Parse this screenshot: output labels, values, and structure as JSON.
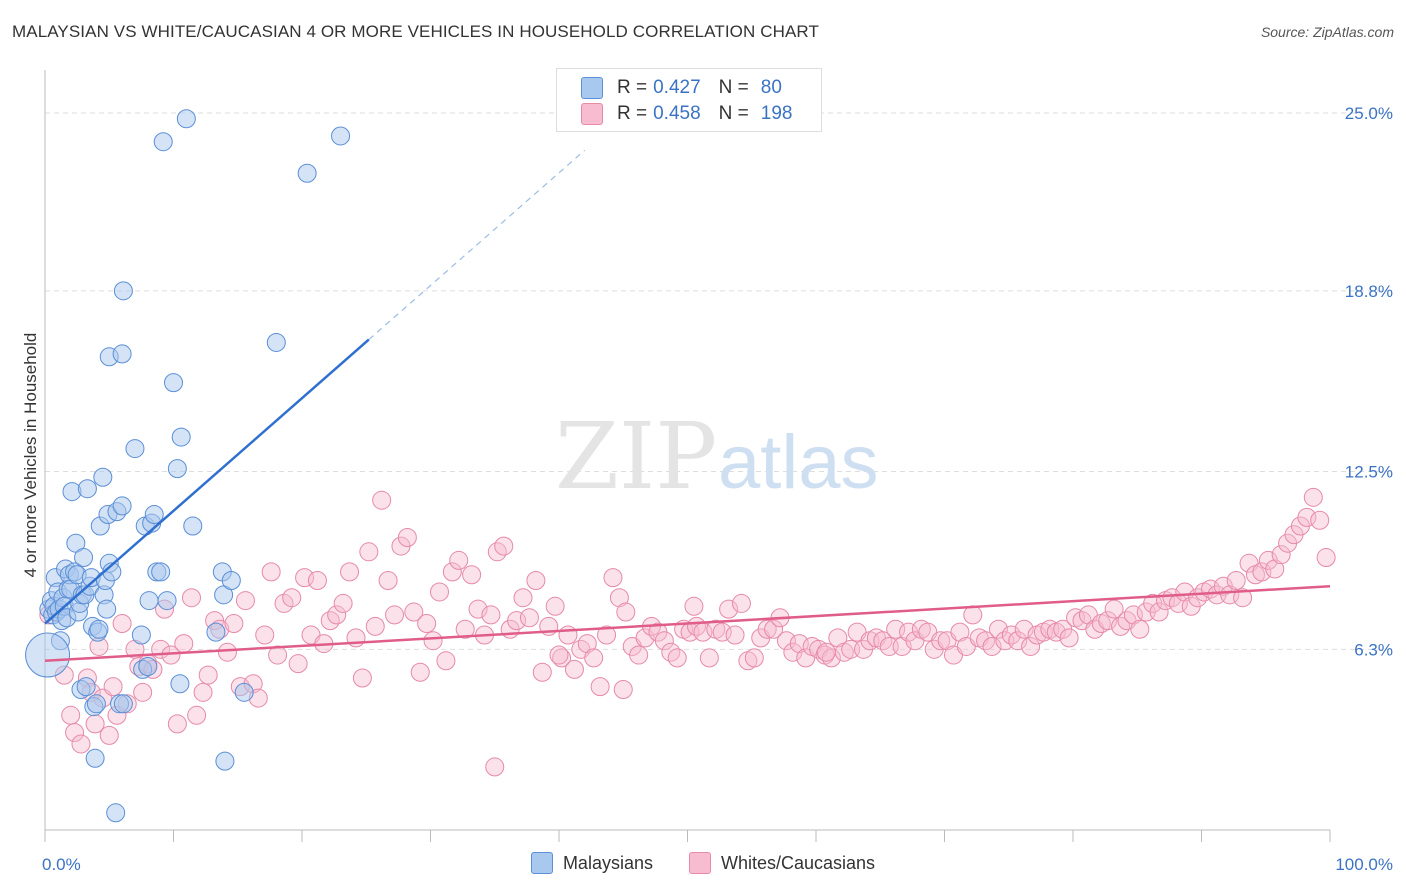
{
  "title": "MALAYSIAN VS WHITE/CAUCASIAN 4 OR MORE VEHICLES IN HOUSEHOLD CORRELATION CHART",
  "source": "Source: ZipAtlas.com",
  "watermark": {
    "zip": "ZIP",
    "atlas": "atlas"
  },
  "legend": {
    "rows": [
      {
        "r_label": "R =",
        "r_value": "0.427",
        "n_label": "N =",
        "n_value": "80"
      },
      {
        "r_label": "R =",
        "r_value": "0.458",
        "n_label": "N =",
        "n_value": "198"
      }
    ]
  },
  "bottom_legend": {
    "series1": "Malaysians",
    "series2": "Whites/Caucasians"
  },
  "colors": {
    "blue_fill": "#a9c8ee",
    "blue_stroke": "#5b8fd6",
    "blue_line": "#2f6fd0",
    "pink_fill": "#f7bcd0",
    "pink_stroke": "#e68aa8",
    "pink_line": "#e05c8a",
    "axis_text": "#3b73c4",
    "grid": "#dddddd"
  },
  "chart_data": {
    "type": "scatter",
    "title": "MALAYSIAN VS WHITE/CAUCASIAN 4 OR MORE VEHICLES IN HOUSEHOLD CORRELATION CHART",
    "xlabel": "",
    "ylabel": "4 or more Vehicles in Household",
    "xlim": [
      0,
      100
    ],
    "ylim": [
      0,
      26.5
    ],
    "x_tick_labels": [
      "0.0%",
      "100.0%"
    ],
    "y_ticks": [
      6.3,
      12.5,
      18.8,
      25.0
    ],
    "y_tick_labels": [
      "6.3%",
      "12.5%",
      "18.8%",
      "25.0%"
    ],
    "grid": true,
    "legend_position": "top-center",
    "series": [
      {
        "name": "Malaysians",
        "R": 0.427,
        "N": 80,
        "trend": {
          "x": [
            0,
            25.2
          ],
          "y": [
            7.2,
            17.1
          ],
          "dashed_to": [
            42,
            23.7
          ]
        },
        "points": [
          [
            0.3,
            7.7
          ],
          [
            0.5,
            8.0
          ],
          [
            0.6,
            7.5
          ],
          [
            0.7,
            7.8
          ],
          [
            0.8,
            8.8
          ],
          [
            0.9,
            7.6
          ],
          [
            1.0,
            8.3
          ],
          [
            1.1,
            7.7
          ],
          [
            1.2,
            6.6
          ],
          [
            1.3,
            7.3
          ],
          [
            1.4,
            8.1
          ],
          [
            1.5,
            7.8
          ],
          [
            1.6,
            9.1
          ],
          [
            1.7,
            7.4
          ],
          [
            1.8,
            8.4
          ],
          [
            1.9,
            8.9
          ],
          [
            2.0,
            8.4
          ],
          [
            2.1,
            11.8
          ],
          [
            2.3,
            9.0
          ],
          [
            2.4,
            10.0
          ],
          [
            2.5,
            8.9
          ],
          [
            2.6,
            7.6
          ],
          [
            2.7,
            7.9
          ],
          [
            2.8,
            4.9
          ],
          [
            2.9,
            8.2
          ],
          [
            3.0,
            9.5
          ],
          [
            3.1,
            8.2
          ],
          [
            3.2,
            5.0
          ],
          [
            3.3,
            11.9
          ],
          [
            3.5,
            8.5
          ],
          [
            3.6,
            8.8
          ],
          [
            3.7,
            7.1
          ],
          [
            3.8,
            4.3
          ],
          [
            3.9,
            2.5
          ],
          [
            4.0,
            4.4
          ],
          [
            4.1,
            6.9
          ],
          [
            4.2,
            7.0
          ],
          [
            4.3,
            10.6
          ],
          [
            4.5,
            12.3
          ],
          [
            4.6,
            8.2
          ],
          [
            4.7,
            8.7
          ],
          [
            4.8,
            7.7
          ],
          [
            4.9,
            11.0
          ],
          [
            5.0,
            9.3
          ],
          [
            5.2,
            9.0
          ],
          [
            5.5,
            0.6
          ],
          [
            5.6,
            11.1
          ],
          [
            5.8,
            4.4
          ],
          [
            6.0,
            11.3
          ],
          [
            6.1,
            4.4
          ],
          [
            7.0,
            13.3
          ],
          [
            7.5,
            6.8
          ],
          [
            7.6,
            5.6
          ],
          [
            7.8,
            10.6
          ],
          [
            8.0,
            5.7
          ],
          [
            8.1,
            8.0
          ],
          [
            8.3,
            10.7
          ],
          [
            8.5,
            11.0
          ],
          [
            8.7,
            9.0
          ],
          [
            9.0,
            9.0
          ],
          [
            9.2,
            24.0
          ],
          [
            9.5,
            8.0
          ],
          [
            10.0,
            15.6
          ],
          [
            10.3,
            12.6
          ],
          [
            10.5,
            5.1
          ],
          [
            10.6,
            13.7
          ],
          [
            11.0,
            24.8
          ],
          [
            11.5,
            10.6
          ],
          [
            13.3,
            6.9
          ],
          [
            13.8,
            9.0
          ],
          [
            13.9,
            8.2
          ],
          [
            14.0,
            2.4
          ],
          [
            14.5,
            8.7
          ],
          [
            15.5,
            4.8
          ],
          [
            18.0,
            17.0
          ],
          [
            20.4,
            22.9
          ],
          [
            23.0,
            24.2
          ],
          [
            6.1,
            18.8
          ],
          [
            5.0,
            16.5
          ],
          [
            6.0,
            16.6
          ],
          [
            0.2,
            6.1
          ]
        ]
      },
      {
        "name": "Whites/Caucasians",
        "R": 0.458,
        "N": 198,
        "trend": {
          "x": [
            0,
            100
          ],
          "y": [
            5.9,
            8.5
          ]
        },
        "points": [
          [
            0.3,
            7.5
          ],
          [
            1.5,
            5.4
          ],
          [
            2.0,
            4.0
          ],
          [
            2.3,
            3.4
          ],
          [
            2.8,
            3.0
          ],
          [
            3.3,
            5.3
          ],
          [
            3.6,
            4.8
          ],
          [
            3.9,
            3.7
          ],
          [
            4.2,
            6.4
          ],
          [
            4.5,
            4.6
          ],
          [
            5.0,
            3.3
          ],
          [
            5.3,
            5.0
          ],
          [
            5.6,
            4.0
          ],
          [
            6.0,
            7.2
          ],
          [
            6.4,
            4.4
          ],
          [
            7.0,
            6.3
          ],
          [
            7.3,
            5.7
          ],
          [
            7.6,
            4.8
          ],
          [
            8.0,
            5.8
          ],
          [
            8.4,
            5.6
          ],
          [
            9.0,
            6.3
          ],
          [
            9.3,
            7.7
          ],
          [
            9.8,
            6.1
          ],
          [
            10.3,
            3.7
          ],
          [
            10.8,
            6.5
          ],
          [
            11.4,
            8.1
          ],
          [
            11.8,
            4.0
          ],
          [
            12.3,
            4.8
          ],
          [
            12.7,
            5.4
          ],
          [
            13.2,
            7.3
          ],
          [
            13.6,
            7.0
          ],
          [
            14.2,
            6.2
          ],
          [
            14.7,
            7.2
          ],
          [
            15.2,
            5.0
          ],
          [
            15.6,
            8.0
          ],
          [
            16.2,
            5.1
          ],
          [
            16.6,
            4.6
          ],
          [
            17.1,
            6.8
          ],
          [
            17.6,
            9.0
          ],
          [
            18.1,
            6.1
          ],
          [
            18.6,
            7.9
          ],
          [
            19.2,
            8.1
          ],
          [
            19.7,
            5.8
          ],
          [
            20.2,
            8.8
          ],
          [
            20.7,
            6.8
          ],
          [
            21.2,
            8.7
          ],
          [
            21.7,
            6.5
          ],
          [
            22.2,
            7.3
          ],
          [
            22.7,
            7.5
          ],
          [
            23.2,
            7.9
          ],
          [
            23.7,
            9.0
          ],
          [
            24.2,
            6.7
          ],
          [
            24.7,
            5.3
          ],
          [
            25.2,
            9.7
          ],
          [
            25.7,
            7.1
          ],
          [
            26.2,
            11.5
          ],
          [
            26.7,
            8.7
          ],
          [
            27.2,
            7.5
          ],
          [
            27.7,
            9.9
          ],
          [
            28.2,
            10.2
          ],
          [
            28.7,
            7.6
          ],
          [
            29.2,
            5.5
          ],
          [
            29.7,
            7.2
          ],
          [
            30.2,
            6.6
          ],
          [
            30.7,
            8.3
          ],
          [
            31.2,
            5.9
          ],
          [
            31.7,
            9.0
          ],
          [
            32.2,
            9.4
          ],
          [
            32.7,
            7.0
          ],
          [
            33.2,
            8.9
          ],
          [
            33.7,
            7.7
          ],
          [
            34.2,
            6.8
          ],
          [
            34.7,
            7.5
          ],
          [
            35.2,
            9.7
          ],
          [
            35.7,
            9.9
          ],
          [
            36.2,
            7.0
          ],
          [
            36.7,
            7.3
          ],
          [
            37.2,
            8.1
          ],
          [
            37.7,
            7.4
          ],
          [
            38.2,
            8.7
          ],
          [
            38.7,
            5.5
          ],
          [
            39.2,
            7.1
          ],
          [
            39.7,
            7.8
          ],
          [
            40.2,
            6.0
          ],
          [
            40.7,
            6.8
          ],
          [
            41.2,
            5.6
          ],
          [
            41.7,
            6.3
          ],
          [
            42.2,
            6.5
          ],
          [
            42.7,
            6.0
          ],
          [
            43.2,
            5.0
          ],
          [
            43.7,
            6.8
          ],
          [
            44.2,
            8.8
          ],
          [
            44.7,
            8.1
          ],
          [
            45.2,
            7.6
          ],
          [
            45.7,
            6.4
          ],
          [
            46.2,
            6.1
          ],
          [
            46.7,
            6.7
          ],
          [
            47.2,
            7.1
          ],
          [
            47.7,
            6.9
          ],
          [
            48.2,
            6.6
          ],
          [
            48.7,
            6.2
          ],
          [
            49.2,
            6.0
          ],
          [
            49.7,
            7.0
          ],
          [
            50.2,
            6.9
          ],
          [
            50.7,
            7.1
          ],
          [
            51.2,
            6.9
          ],
          [
            51.7,
            6.0
          ],
          [
            52.2,
            7.0
          ],
          [
            52.7,
            6.9
          ],
          [
            53.2,
            7.7
          ],
          [
            53.7,
            6.8
          ],
          [
            54.2,
            7.9
          ],
          [
            54.7,
            5.9
          ],
          [
            55.2,
            6.0
          ],
          [
            55.7,
            6.7
          ],
          [
            56.2,
            7.0
          ],
          [
            56.7,
            7.0
          ],
          [
            57.2,
            7.4
          ],
          [
            57.7,
            6.6
          ],
          [
            58.2,
            6.2
          ],
          [
            58.7,
            6.5
          ],
          [
            59.2,
            6.0
          ],
          [
            59.7,
            6.4
          ],
          [
            60.2,
            6.3
          ],
          [
            60.7,
            6.1
          ],
          [
            61.2,
            6.0
          ],
          [
            61.7,
            6.7
          ],
          [
            62.2,
            6.2
          ],
          [
            62.7,
            6.3
          ],
          [
            63.2,
            6.9
          ],
          [
            63.7,
            6.3
          ],
          [
            64.2,
            6.6
          ],
          [
            64.7,
            6.7
          ],
          [
            65.2,
            6.6
          ],
          [
            65.7,
            6.4
          ],
          [
            66.2,
            7.0
          ],
          [
            66.7,
            6.4
          ],
          [
            67.2,
            6.9
          ],
          [
            67.7,
            6.6
          ],
          [
            68.2,
            7.0
          ],
          [
            68.7,
            6.9
          ],
          [
            69.2,
            6.3
          ],
          [
            69.7,
            6.6
          ],
          [
            70.2,
            6.6
          ],
          [
            70.7,
            6.1
          ],
          [
            71.2,
            6.9
          ],
          [
            71.7,
            6.4
          ],
          [
            72.2,
            7.5
          ],
          [
            72.7,
            6.7
          ],
          [
            73.2,
            6.6
          ],
          [
            73.7,
            6.4
          ],
          [
            74.2,
            7.0
          ],
          [
            74.7,
            6.6
          ],
          [
            75.2,
            6.8
          ],
          [
            75.7,
            6.6
          ],
          [
            76.2,
            7.0
          ],
          [
            76.7,
            6.4
          ],
          [
            77.2,
            6.8
          ],
          [
            77.7,
            6.9
          ],
          [
            78.2,
            7.0
          ],
          [
            78.7,
            6.9
          ],
          [
            79.2,
            7.0
          ],
          [
            79.7,
            6.7
          ],
          [
            80.2,
            7.4
          ],
          [
            80.7,
            7.3
          ],
          [
            81.2,
            7.5
          ],
          [
            81.7,
            7.0
          ],
          [
            82.2,
            7.2
          ],
          [
            82.7,
            7.3
          ],
          [
            83.2,
            7.7
          ],
          [
            83.7,
            7.1
          ],
          [
            84.2,
            7.3
          ],
          [
            84.7,
            7.5
          ],
          [
            85.2,
            7.0
          ],
          [
            85.7,
            7.6
          ],
          [
            86.2,
            7.9
          ],
          [
            86.7,
            7.6
          ],
          [
            87.2,
            8.0
          ],
          [
            87.7,
            8.1
          ],
          [
            88.2,
            7.9
          ],
          [
            88.7,
            8.3
          ],
          [
            89.2,
            7.8
          ],
          [
            89.7,
            8.1
          ],
          [
            90.2,
            8.3
          ],
          [
            90.7,
            8.4
          ],
          [
            91.2,
            8.2
          ],
          [
            91.7,
            8.5
          ],
          [
            92.2,
            8.2
          ],
          [
            92.7,
            8.7
          ],
          [
            93.2,
            8.1
          ],
          [
            93.7,
            9.3
          ],
          [
            94.2,
            8.9
          ],
          [
            94.7,
            9.0
          ],
          [
            95.2,
            9.4
          ],
          [
            95.7,
            9.1
          ],
          [
            96.2,
            9.6
          ],
          [
            96.7,
            10.0
          ],
          [
            97.2,
            10.3
          ],
          [
            97.7,
            10.6
          ],
          [
            98.2,
            10.9
          ],
          [
            98.7,
            11.6
          ],
          [
            99.2,
            10.8
          ],
          [
            99.7,
            9.5
          ],
          [
            60.8,
            6.2
          ],
          [
            35.0,
            2.2
          ],
          [
            40.0,
            6.1
          ],
          [
            45.0,
            4.9
          ],
          [
            50.5,
            7.8
          ]
        ]
      }
    ]
  }
}
